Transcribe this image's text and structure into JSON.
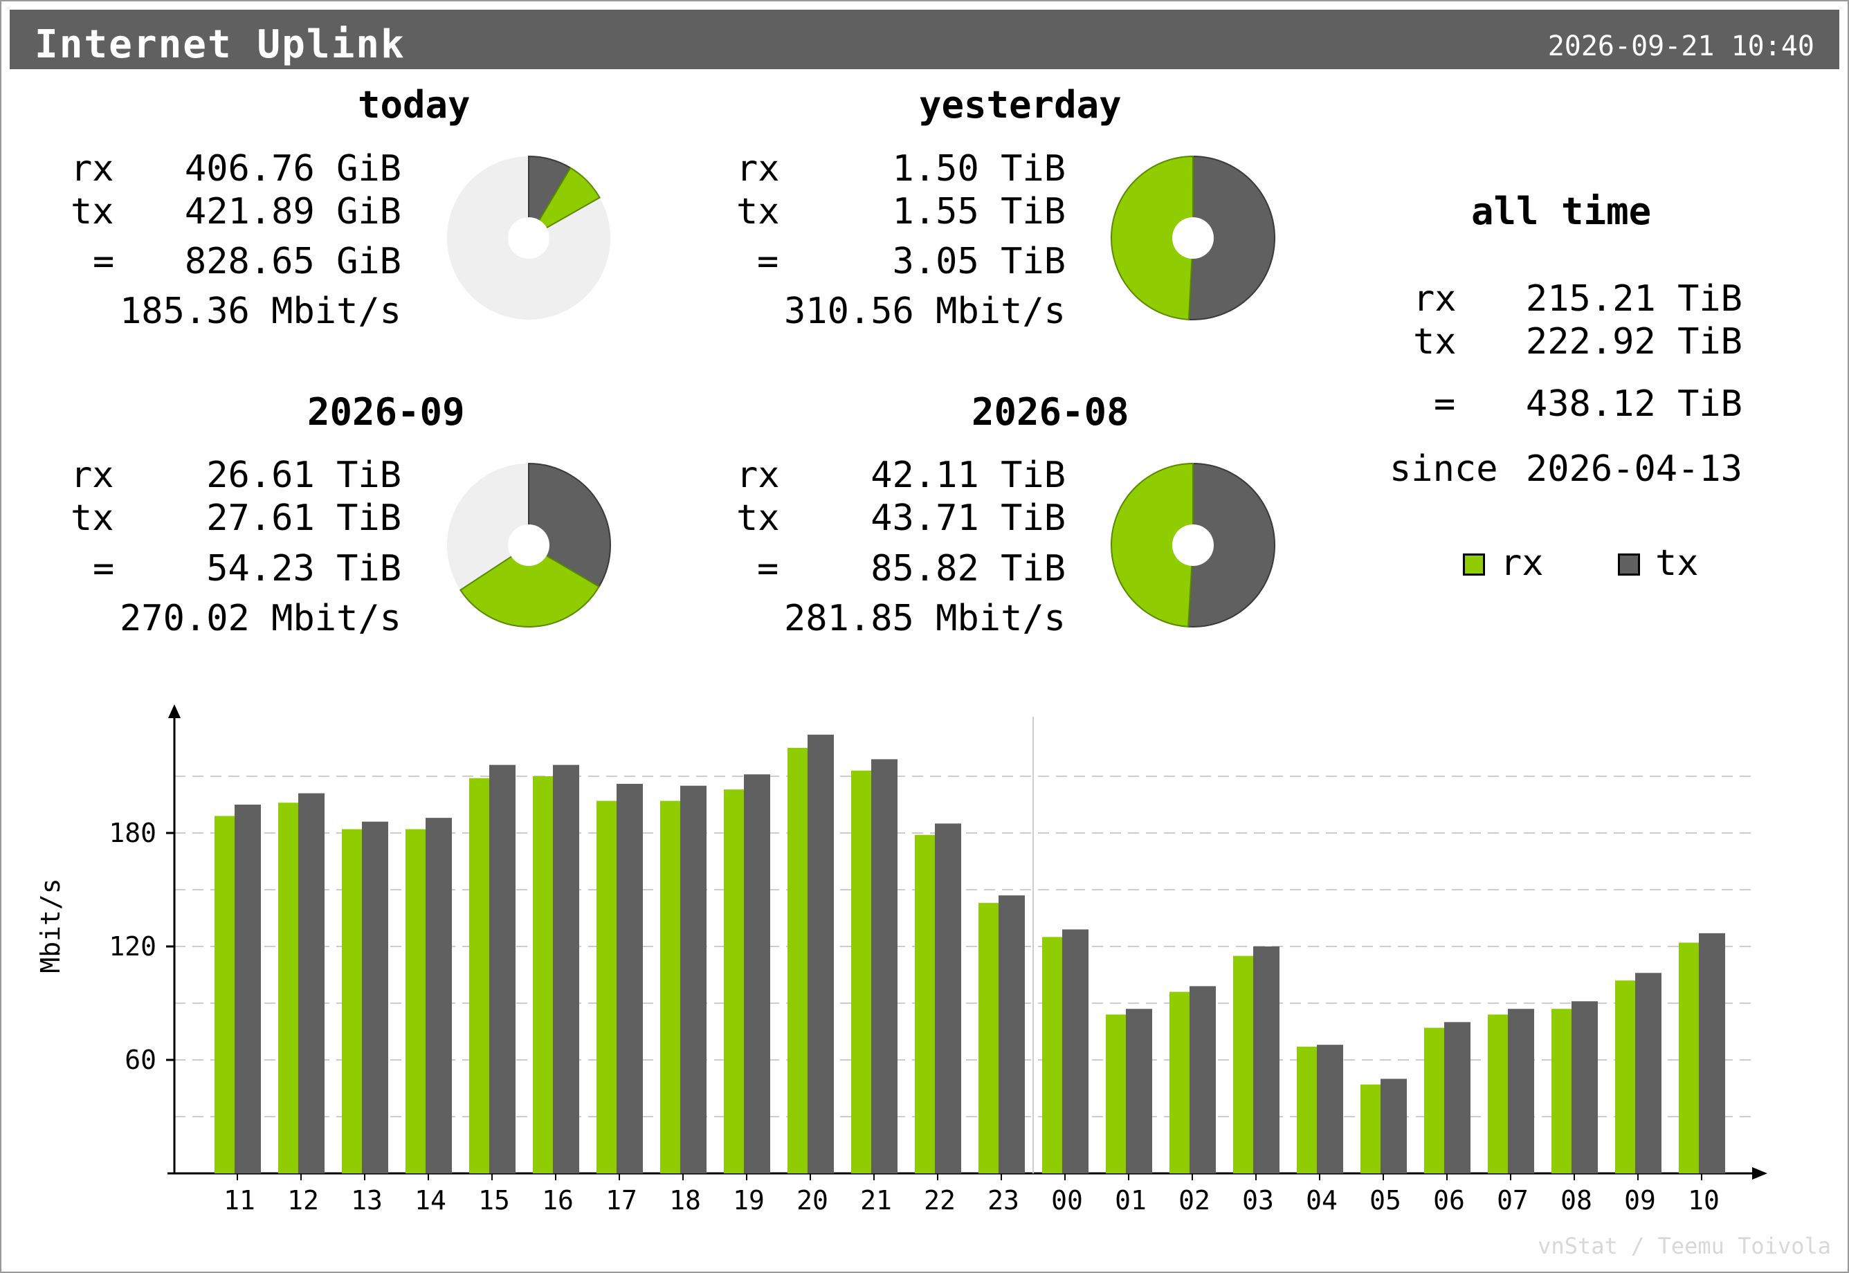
{
  "header": {
    "title": "Internet Uplink",
    "timestamp": "2026-09-21 10:40"
  },
  "colors": {
    "rx": "#8fcc00",
    "tx": "#606060",
    "pie_bg": "#efefef",
    "grid": "#cccccc"
  },
  "summaries": [
    {
      "id": "today",
      "title": "today",
      "rx_label": "rx",
      "rx": "406.76 GiB",
      "tx_label": "tx",
      "tx": "421.89 GiB",
      "total_label": "=",
      "total": "828.65 GiB",
      "rate": "185.36 Mbit/s",
      "pie": {
        "rx_fraction": 0.0823,
        "tx_fraction": 0.0854
      }
    },
    {
      "id": "yesterday",
      "title": "yesterday",
      "rx_label": "rx",
      "rx": "1.50 TiB",
      "tx_label": "tx",
      "tx": "1.55 TiB",
      "total_label": "=",
      "total": "3.05 TiB",
      "rate": "310.56 Mbit/s",
      "pie": {
        "rx_fraction": 0.4918,
        "tx_fraction": 0.5082
      }
    },
    {
      "id": "month",
      "title": "2026-09",
      "rx_label": "rx",
      "rx": "26.61 TiB",
      "tx_label": "tx",
      "tx": "27.61 TiB",
      "total_label": "=",
      "total": "54.23 TiB",
      "rate": "270.02 Mbit/s",
      "pie": {
        "rx_fraction": 0.3227,
        "tx_fraction": 0.3348
      }
    },
    {
      "id": "prev_month",
      "title": "2026-08",
      "rx_label": "rx",
      "rx": "42.11 TiB",
      "tx_label": "tx",
      "tx": "43.71 TiB",
      "total_label": "=",
      "total": "85.82 TiB",
      "rate": "281.85 Mbit/s",
      "pie": {
        "rx_fraction": 0.4907,
        "tx_fraction": 0.5093
      }
    }
  ],
  "all_time": {
    "title": "all time",
    "rx_label": "rx",
    "rx": "215.21 TiB",
    "tx_label": "tx",
    "tx": "222.92 TiB",
    "total_label": "=",
    "total": "438.12 TiB",
    "since_label": "since",
    "since": "2026-04-13"
  },
  "legend": {
    "rx": "rx",
    "tx": "tx"
  },
  "chart_data": {
    "type": "bar",
    "ylabel": "Mbit/s",
    "ylim": [
      0,
      240
    ],
    "yticks": [
      60,
      120,
      180
    ],
    "gridlines": [
      30,
      60,
      90,
      120,
      150,
      180,
      210
    ],
    "categories": [
      "11",
      "12",
      "13",
      "14",
      "15",
      "16",
      "17",
      "18",
      "19",
      "20",
      "21",
      "22",
      "23",
      "00",
      "01",
      "02",
      "03",
      "04",
      "05",
      "06",
      "07",
      "08",
      "09",
      "10"
    ],
    "day_separator_before": "00",
    "series": [
      {
        "name": "rx",
        "values": [
          189,
          196,
          182,
          182,
          209,
          210,
          197,
          197,
          203,
          225,
          213,
          179,
          143,
          125,
          84,
          96,
          115,
          67,
          47,
          77,
          84,
          87,
          102,
          122
        ]
      },
      {
        "name": "tx",
        "values": [
          195,
          201,
          186,
          188,
          216,
          216,
          206,
          205,
          211,
          232,
          219,
          185,
          147,
          129,
          87,
          99,
          120,
          68,
          50,
          80,
          87,
          91,
          106,
          127
        ]
      }
    ]
  },
  "footer": "vnStat / Teemu Toivola"
}
